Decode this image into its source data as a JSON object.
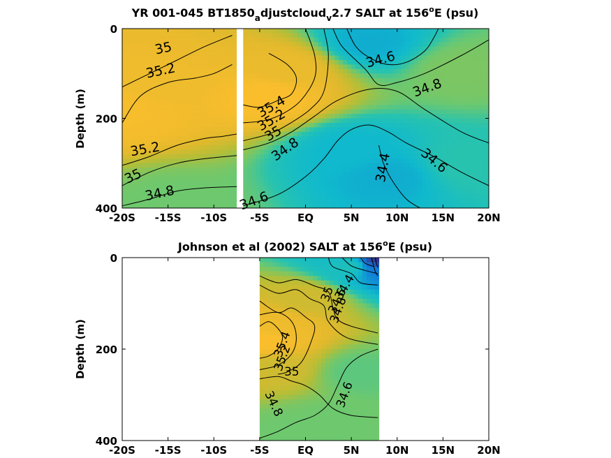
{
  "chart_data": [
    {
      "type": "heatmap",
      "title_parts": [
        "YR 001-045 BT1850",
        "a",
        "djustcloud",
        "v",
        "2.7 SALT at 156",
        "o",
        "E (psu)"
      ],
      "ylabel": "Depth (m)",
      "xlim": [
        -20,
        20
      ],
      "ylim": [
        400,
        0
      ],
      "xticks": [
        {
          "value": -20,
          "label": "-20S"
        },
        {
          "value": -15,
          "label": "-15S"
        },
        {
          "value": -10,
          "label": "-10S"
        },
        {
          "value": -5,
          "label": "-5S"
        },
        {
          "value": 0,
          "label": "EQ"
        },
        {
          "value": 5,
          "label": "5N"
        },
        {
          "value": 10,
          "label": "10N"
        },
        {
          "value": 15,
          "label": "15N"
        },
        {
          "value": 20,
          "label": "20N"
        }
      ],
      "yticks": [
        {
          "value": 0,
          "label": "0"
        },
        {
          "value": 200,
          "label": "200"
        },
        {
          "value": 400,
          "label": "400"
        }
      ],
      "data_gap_x": [
        -7.5,
        -6.8
      ],
      "field_x_range": [
        -20,
        20
      ],
      "hotspots": [
        {
          "x": -19.5,
          "y": 180,
          "value": 35.55
        },
        {
          "x": -16,
          "y": 120,
          "value": 35.45
        },
        {
          "x": -4,
          "y": 150,
          "value": 35.6
        },
        {
          "x": -2,
          "y": 90,
          "value": 35.4
        },
        {
          "x": 7,
          "y": 30,
          "value": 34.3
        },
        {
          "x": 9,
          "y": 330,
          "value": 34.3
        },
        {
          "x": 5,
          "y": 270,
          "value": 34.35
        },
        {
          "x": 17,
          "y": 90,
          "value": 34.85
        },
        {
          "x": 18,
          "y": 300,
          "value": 34.6
        },
        {
          "x": -14,
          "y": 390,
          "value": 34.8
        }
      ],
      "contour_labels": [
        {
          "x": -15.5,
          "y": 45,
          "text": "35",
          "rot": -12
        },
        {
          "x": -15.8,
          "y": 95,
          "text": "35.2",
          "rot": -12
        },
        {
          "x": -17.5,
          "y": 270,
          "text": "35.2",
          "rot": -10
        },
        {
          "x": -18.8,
          "y": 330,
          "text": "35",
          "rot": -25
        },
        {
          "x": -15.9,
          "y": 368,
          "text": "34.8",
          "rot": -12
        },
        {
          "x": -3.7,
          "y": 175,
          "text": "35.4",
          "rot": -30
        },
        {
          "x": -3.7,
          "y": 205,
          "text": "35.2",
          "rot": -30
        },
        {
          "x": -3.5,
          "y": 235,
          "text": "35",
          "rot": -30
        },
        {
          "x": -2.2,
          "y": 270,
          "text": "34.8",
          "rot": -35
        },
        {
          "x": -5.6,
          "y": 385,
          "text": "34.6",
          "rot": -20
        },
        {
          "x": 8.2,
          "y": 70,
          "text": "34.6",
          "rot": -15
        },
        {
          "x": 13.3,
          "y": 133,
          "text": "34.8",
          "rot": -20
        },
        {
          "x": 8.5,
          "y": 310,
          "text": "34.4",
          "rot": -80
        },
        {
          "x": 14,
          "y": 295,
          "text": "34.6",
          "rot": 40
        }
      ],
      "contours": [
        {
          "level": 35,
          "points": [
            [
              -20,
              130
            ],
            [
              -17,
              100
            ],
            [
              -14,
              70
            ],
            [
              -11,
              40
            ],
            [
              -8,
              15
            ]
          ]
        },
        {
          "level": 35.2,
          "points": [
            [
              -20,
              210
            ],
            [
              -18,
              150
            ],
            [
              -15,
              120
            ],
            [
              -12,
              110
            ],
            [
              -10,
              100
            ],
            [
              -8,
              80
            ]
          ]
        },
        {
          "level": 35.2,
          "points": [
            [
              -20,
              305
            ],
            [
              -17,
              285
            ],
            [
              -14,
              260
            ],
            [
              -11,
              245
            ],
            [
              -9,
              240
            ],
            [
              -7.5,
              235
            ]
          ]
        },
        {
          "level": 35,
          "points": [
            [
              -20,
              350
            ],
            [
              -17,
              320
            ],
            [
              -14,
              300
            ],
            [
              -11,
              290
            ],
            [
              -7.5,
              283
            ]
          ]
        },
        {
          "level": 34.8,
          "points": [
            [
              -20,
              395
            ],
            [
              -17,
              380
            ],
            [
              -14,
              362
            ],
            [
              -11,
              355
            ],
            [
              -7.5,
              352
            ]
          ]
        },
        {
          "level": 35.4,
          "points": [
            [
              -6.8,
              170
            ],
            [
              -5,
              175
            ],
            [
              -3,
              160
            ],
            [
              -1.5,
              145
            ],
            [
              -1,
              110
            ],
            [
              -2,
              80
            ],
            [
              -4,
              55
            ]
          ]
        },
        {
          "level": 35.2,
          "points": [
            [
              -6.8,
              210
            ],
            [
              -4.5,
              205
            ],
            [
              -2.5,
              190
            ],
            [
              -0.5,
              160
            ],
            [
              1,
              110
            ],
            [
              1,
              60
            ],
            [
              0,
              0
            ]
          ]
        },
        {
          "level": 35,
          "points": [
            [
              -6.8,
              250
            ],
            [
              -4,
              235
            ],
            [
              -2,
              215
            ],
            [
              0.5,
              180
            ],
            [
              2,
              140
            ],
            [
              2.5,
              60
            ],
            [
              2,
              0
            ]
          ]
        },
        {
          "level": 34.8,
          "points": [
            [
              -6.8,
              270
            ],
            [
              -4,
              255
            ],
            [
              -1.5,
              230
            ],
            [
              1,
              195
            ],
            [
              3.5,
              160
            ],
            [
              7,
              135
            ],
            [
              10,
              140
            ],
            [
              13,
              180
            ],
            [
              17,
              230
            ],
            [
              20,
              255
            ]
          ]
        },
        {
          "level": 34.8,
          "points": [
            [
              3,
              0
            ],
            [
              4,
              40
            ],
            [
              6.5,
              90
            ],
            [
              8,
              125
            ],
            [
              10,
              120
            ],
            [
              13,
              100
            ],
            [
              17,
              60
            ],
            [
              20,
              25
            ]
          ]
        },
        {
          "level": 34.6,
          "points": [
            [
              -6.8,
              395
            ],
            [
              -3,
              370
            ],
            [
              0,
              330
            ],
            [
              2,
              290
            ],
            [
              3.5,
              250
            ],
            [
              5,
              225
            ],
            [
              7,
              215
            ],
            [
              9,
              230
            ],
            [
              11,
              255
            ],
            [
              14,
              285
            ],
            [
              17,
              320
            ],
            [
              20,
              350
            ]
          ]
        },
        {
          "level": 34.6,
          "points": [
            [
              4.5,
              0
            ],
            [
              5.5,
              40
            ],
            [
              7,
              65
            ],
            [
              9,
              80
            ],
            [
              11,
              75
            ],
            [
              13,
              50
            ],
            [
              14,
              20
            ],
            [
              14.5,
              0
            ]
          ]
        },
        {
          "level": 34.4,
          "points": [
            [
              8,
              260
            ],
            [
              8.5,
              300
            ],
            [
              9.5,
              340
            ],
            [
              11,
              380
            ],
            [
              12.5,
              400
            ]
          ]
        }
      ]
    },
    {
      "type": "heatmap",
      "title_parts": [
        "Johnson et al (2002) SALT at 156",
        "o",
        "E (psu)"
      ],
      "ylabel": "Depth (m)",
      "xlim": [
        -20,
        20
      ],
      "ylim": [
        400,
        0
      ],
      "xticks": [
        {
          "value": -20,
          "label": "-20S"
        },
        {
          "value": -15,
          "label": "-15S"
        },
        {
          "value": -10,
          "label": "-10S"
        },
        {
          "value": -5,
          "label": "-5S"
        },
        {
          "value": 0,
          "label": "EQ"
        },
        {
          "value": 5,
          "label": "5N"
        },
        {
          "value": 10,
          "label": "10N"
        },
        {
          "value": 15,
          "label": "15N"
        },
        {
          "value": 20,
          "label": "20N"
        }
      ],
      "yticks": [
        {
          "value": 0,
          "label": "0"
        },
        {
          "value": 200,
          "label": "200"
        },
        {
          "value": 400,
          "label": "400"
        }
      ],
      "field_x_range": [
        -5,
        8
      ],
      "hotspots": [
        {
          "x": -4.5,
          "y": 180,
          "value": 35.6
        },
        {
          "x": -3,
          "y": 150,
          "value": 35.45
        },
        {
          "x": -3.5,
          "y": 240,
          "value": 35.2
        },
        {
          "x": 0,
          "y": 90,
          "value": 35.2
        },
        {
          "x": 5,
          "y": 20,
          "value": 34.5
        },
        {
          "x": 7.5,
          "y": 20,
          "value": 34.1
        },
        {
          "x": 7.9,
          "y": 10,
          "value": 33.9
        },
        {
          "x": 6,
          "y": 250,
          "value": 34.75
        },
        {
          "x": -1,
          "y": 380,
          "value": 34.8
        },
        {
          "x": 3,
          "y": 360,
          "value": 34.8
        }
      ],
      "contour_labels": [
        {
          "x": 4.3,
          "y": 65,
          "text": "34.4",
          "rot": -60
        },
        {
          "x": 3.5,
          "y": 95,
          "text": "34.6",
          "rot": -65
        },
        {
          "x": 3.6,
          "y": 115,
          "text": "34.8",
          "rot": -70
        },
        {
          "x": 2.4,
          "y": 80,
          "text": "35",
          "rot": -70
        },
        {
          "x": -2.5,
          "y": 190,
          "text": "35.4",
          "rot": -70
        },
        {
          "x": -2.5,
          "y": 220,
          "text": "35.2",
          "rot": -70
        },
        {
          "x": -1.5,
          "y": 250,
          "text": "35",
          "rot": 0
        },
        {
          "x": -3.5,
          "y": 320,
          "text": "34.8",
          "rot": 65
        },
        {
          "x": 4.3,
          "y": 300,
          "text": "34.6",
          "rot": -70
        }
      ],
      "contours": [
        {
          "level": 35,
          "points": [
            [
              -5,
              40
            ],
            [
              -3,
              55
            ],
            [
              -1,
              48
            ],
            [
              1,
              62
            ],
            [
              2.5,
              75
            ],
            [
              3,
              110
            ],
            [
              3.5,
              135
            ],
            [
              5,
              150
            ],
            [
              7.9,
              165
            ]
          ]
        },
        {
          "level": 35.2,
          "points": [
            [
              -5,
              60
            ],
            [
              -3,
              78
            ],
            [
              -1,
              70
            ],
            [
              0.5,
              90
            ],
            [
              2,
              105
            ],
            [
              2.5,
              140
            ],
            [
              4.5,
              175
            ],
            [
              7.9,
              190
            ]
          ]
        },
        {
          "level": 35,
          "points": [
            [
              -5,
              95
            ],
            [
              -3,
              120
            ],
            [
              -1.5,
              110
            ],
            [
              0,
              130
            ],
            [
              1,
              150
            ],
            [
              0.5,
              190
            ],
            [
              -0.5,
              230
            ],
            [
              -2,
              250
            ],
            [
              -3,
              255
            ]
          ]
        },
        {
          "level": 35.4,
          "points": [
            [
              -5,
              150
            ],
            [
              -4,
              140
            ],
            [
              -3,
              155
            ],
            [
              -2.5,
              175
            ],
            [
              -3,
              200
            ],
            [
              -4,
              215
            ],
            [
              -5,
              220
            ]
          ]
        },
        {
          "level": 35.2,
          "points": [
            [
              -5,
              125
            ],
            [
              -3,
              120
            ],
            [
              -1.5,
              140
            ],
            [
              -1,
              175
            ],
            [
              -1.5,
              210
            ],
            [
              -3,
              235
            ],
            [
              -5,
              245
            ]
          ]
        },
        {
          "level": 34.8,
          "points": [
            [
              -5,
              265
            ],
            [
              -3,
              260
            ],
            [
              -1.5,
              270
            ],
            [
              0,
              280
            ],
            [
              1.5,
              300
            ],
            [
              3,
              330
            ],
            [
              5,
              345
            ],
            [
              7.9,
              350
            ]
          ]
        },
        {
          "level": 34.8,
          "points": [
            [
              -5,
              395
            ],
            [
              -3,
              380
            ],
            [
              -1,
              360
            ],
            [
              1,
              345
            ],
            [
              2.5,
              320
            ],
            [
              3.5,
              280
            ],
            [
              4.5,
              240
            ],
            [
              6,
              215
            ],
            [
              7.9,
              200
            ]
          ]
        },
        {
          "level": 34.6,
          "points": [
            [
              2.5,
              0
            ],
            [
              3,
              20
            ],
            [
              5,
              35
            ],
            [
              6,
              55
            ],
            [
              7.9,
              60
            ]
          ]
        },
        {
          "level": 34.4,
          "points": [
            [
              4,
              0
            ],
            [
              5,
              18
            ],
            [
              6.5,
              28
            ],
            [
              7.9,
              35
            ]
          ]
        },
        {
          "level": 34.2,
          "points": [
            [
              7.2,
              0
            ],
            [
              7.4,
              15
            ],
            [
              7.6,
              30
            ],
            [
              7.9,
              40
            ]
          ]
        },
        {
          "level": 34,
          "points": [
            [
              7.6,
              0
            ],
            [
              7.7,
              10
            ],
            [
              7.9,
              22
            ]
          ]
        },
        {
          "level": 34.6,
          "points": [
            [
              6,
              0
            ],
            [
              6.5,
              12
            ],
            [
              7.5,
              20
            ]
          ]
        }
      ]
    }
  ]
}
